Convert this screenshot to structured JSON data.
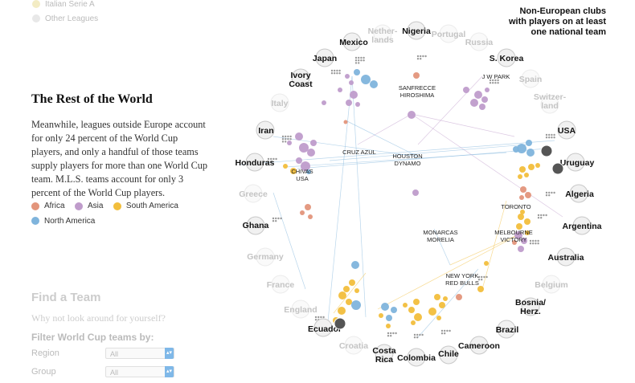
{
  "top_legend": [
    {
      "label": "Italian Serie A",
      "color": "#f3ecc4"
    },
    {
      "label": "Other Leagues",
      "color": "#e8e8e8"
    }
  ],
  "panel": {
    "title": "The Rest of the World",
    "body": "Meanwhile, leagues outside Europe account for only 24 percent of the World Cup players, and only a handful of those teams supply players for more than one World Cup team. M.L.S. teams account for only 3 percent of the World Cup players."
  },
  "legend": [
    {
      "label": "Africa",
      "color": "#e3957b"
    },
    {
      "label": "Asia",
      "color": "#bf9ccb"
    },
    {
      "label": "South America",
      "color": "#f2be3c"
    },
    {
      "label": "North America",
      "color": "#7fb4dc"
    }
  ],
  "find": {
    "title": "Find a Team",
    "subtitle": "Why not look around for yourself?",
    "filter_label": "Filter World Cup teams by:",
    "region_label": "Region",
    "region_value": "All",
    "group_label": "Group",
    "group_value": "All"
  },
  "corner_note": {
    "line1": "Non-European clubs",
    "line2": "with players on at least",
    "line3": "one national team"
  },
  "countries": [
    {
      "name": "Nigeria",
      "active": true
    },
    {
      "name": "Portugal",
      "active": false
    },
    {
      "name": "Russia",
      "active": false
    },
    {
      "name": "S. Korea",
      "active": true
    },
    {
      "name": "Spain",
      "active": false
    },
    {
      "name": "Switzer-",
      "name2": "land",
      "active": false
    },
    {
      "name": "USA",
      "active": true
    },
    {
      "name": "Uruguay",
      "active": true
    },
    {
      "name": "Algeria",
      "active": true
    },
    {
      "name": "Argentina",
      "active": true
    },
    {
      "name": "Australia",
      "active": true
    },
    {
      "name": "Belgium",
      "active": false
    },
    {
      "name": "Bosnia/",
      "name2": "Herz.",
      "active": true
    },
    {
      "name": "Brazil",
      "active": true
    },
    {
      "name": "Cameroon",
      "active": true
    },
    {
      "name": "Chile",
      "active": true
    },
    {
      "name": "Colombia",
      "active": true
    },
    {
      "name": "Costa",
      "name2": "Rica",
      "active": true
    },
    {
      "name": "Croatia",
      "active": false
    },
    {
      "name": "Ecuador",
      "active": true
    },
    {
      "name": "England",
      "active": false
    },
    {
      "name": "France",
      "active": false
    },
    {
      "name": "Germany",
      "active": false
    },
    {
      "name": "Ghana",
      "active": true
    },
    {
      "name": "Greece",
      "active": false
    },
    {
      "name": "Honduras",
      "active": true
    },
    {
      "name": "Iran",
      "active": true
    },
    {
      "name": "Italy",
      "active": false
    },
    {
      "name": "Ivory",
      "name2": "Coast",
      "active": true
    },
    {
      "name": "Japan",
      "active": true
    },
    {
      "name": "Mexico",
      "active": true
    },
    {
      "name": "Nether-",
      "name2": "lands",
      "active": false
    }
  ],
  "clubs": [
    {
      "line1": "SANFRECCE",
      "line2": "HIROSHIMA"
    },
    {
      "line1": "J W PARK",
      "line2": ""
    },
    {
      "line1": "CRUZ AZUL",
      "line2": ""
    },
    {
      "line1": "HOUSTON",
      "line2": "DYNAMO"
    },
    {
      "line1": "CHIVAS",
      "line2": "USA"
    },
    {
      "line1": "TORONTO",
      "line2": ""
    },
    {
      "line1": "MELBOURNE",
      "line2": "VICTORY"
    },
    {
      "line1": "MONARCAS",
      "line2": "MORELIA"
    },
    {
      "line1": "NEW YORK",
      "line2": "RED BULLS"
    }
  ]
}
